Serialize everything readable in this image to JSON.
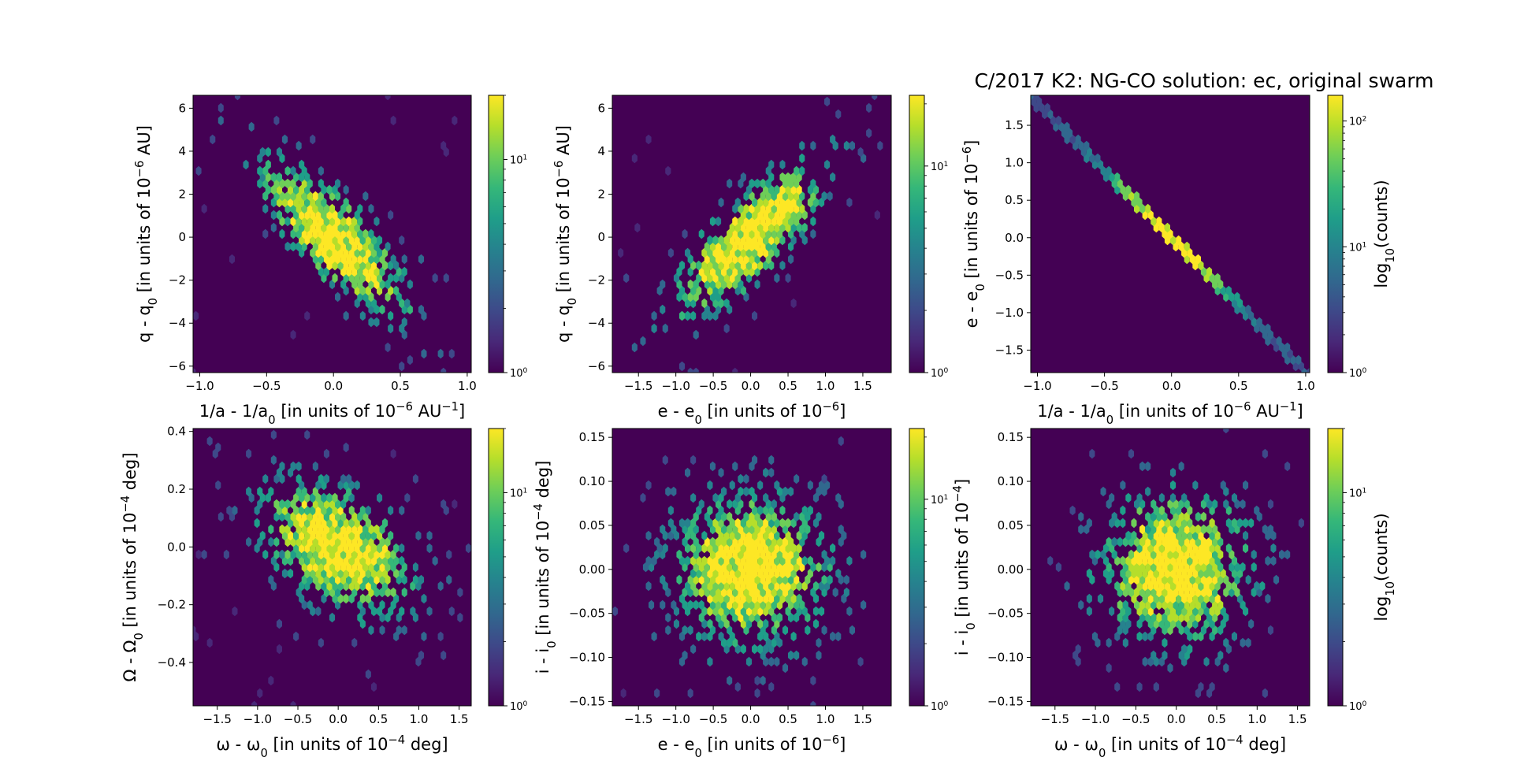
{
  "figure": {
    "title": "C/2017 K2:  NG-CO solution: ec, original swarm"
  },
  "colormap": [
    "#440154",
    "#482878",
    "#3e4989",
    "#31688e",
    "#26828e",
    "#1f9e89",
    "#35b779",
    "#6ece58",
    "#b5de2b",
    "#fde725"
  ],
  "chart_data": [
    {
      "type": "heatmap",
      "subtype": "hexbin",
      "xlabel": "1/a - 1/a_0 [in units of 10^-6 AU^-1]",
      "ylabel": "q - q_0 [in units of 10^-6 AU]",
      "xlim": [
        -1.05,
        1.03
      ],
      "ylim": [
        -6.3,
        6.6
      ],
      "xticks": [
        -1.0,
        -0.5,
        0.0,
        0.5,
        1.0
      ],
      "xtick_labels": [
        "−1.0",
        "−0.5",
        "0.0",
        "0.5",
        "1.0"
      ],
      "yticks": [
        -6,
        -4,
        -2,
        0,
        2,
        4,
        6
      ],
      "ytick_labels": [
        "−6",
        "−4",
        "−2",
        "0",
        "2",
        "4",
        "6"
      ],
      "distribution": {
        "mean": [
          0.0,
          0.0
        ],
        "sigma": [
          0.32,
          2.05
        ],
        "rho": -0.8
      },
      "colorbar": {
        "scale": "log",
        "range": [
          1,
          20
        ],
        "tick_labels": [
          "10^0",
          "10^1"
        ],
        "label": ""
      }
    },
    {
      "type": "heatmap",
      "subtype": "hexbin",
      "xlabel": "e - e_0 [in units of 10^-6]",
      "ylabel": "q - q_0 [in units of 10^-6 AU]",
      "xlim": [
        -1.85,
        1.88
      ],
      "ylim": [
        -6.3,
        6.6
      ],
      "xticks": [
        -1.5,
        -1.0,
        -0.5,
        0.0,
        0.5,
        1.0,
        1.5
      ],
      "xtick_labels": [
        "−1.5",
        "−1.0",
        "−0.5",
        "0.0",
        "0.5",
        "1.0",
        "1.5"
      ],
      "yticks": [
        -6,
        -4,
        -2,
        0,
        2,
        4,
        6
      ],
      "ytick_labels": [
        "−6",
        "−4",
        "−2",
        "0",
        "2",
        "4",
        "6"
      ],
      "distribution": {
        "mean": [
          0.0,
          0.0
        ],
        "sigma": [
          0.58,
          2.05
        ],
        "rho": 0.8
      },
      "colorbar": {
        "scale": "log",
        "range": [
          1,
          22
        ],
        "tick_labels": [
          "10^0",
          "10^1"
        ],
        "label": ""
      }
    },
    {
      "type": "heatmap",
      "subtype": "hexbin",
      "xlabel": "1/a - 1/a_0 [in units of 10^-6 AU^-1]",
      "ylabel": "e - e_0 [in units of 10^-6]",
      "xlim": [
        -1.05,
        1.03
      ],
      "ylim": [
        -1.8,
        1.9
      ],
      "xticks": [
        -1.0,
        -0.5,
        0.0,
        0.5,
        1.0
      ],
      "xtick_labels": [
        "−1.0",
        "−0.5",
        "0.0",
        "0.5",
        "1.0"
      ],
      "yticks": [
        -1.5,
        -1.0,
        -0.5,
        0.0,
        0.5,
        1.0,
        1.5
      ],
      "ytick_labels": [
        "−1.5",
        "−1.0",
        "−0.5",
        "0.0",
        "0.5",
        "1.0",
        "1.5"
      ],
      "distribution": {
        "linear": true,
        "slope": -1.8,
        "intercept": 0.0,
        "sigma_x": 0.32
      },
      "colorbar": {
        "scale": "log",
        "range": [
          1,
          160
        ],
        "tick_labels": [
          "10^0",
          "10^1",
          "10^2"
        ],
        "label": "log_10(counts)"
      }
    },
    {
      "type": "heatmap",
      "subtype": "hexbin",
      "xlabel": "ω - ω_0 [in units of 10^-4 deg]",
      "ylabel": "Ω - Ω_0 [in units of 10^-4 deg]",
      "xlim": [
        -1.8,
        1.65
      ],
      "ylim": [
        -0.55,
        0.41
      ],
      "xticks": [
        -1.5,
        -1.0,
        -0.5,
        0.0,
        0.5,
        1.0,
        1.5
      ],
      "xtick_labels": [
        "−1.5",
        "−1.0",
        "−0.5",
        "0.0",
        "0.5",
        "1.0",
        "1.5"
      ],
      "yticks": [
        -0.4,
        -0.2,
        0.0,
        0.2
      ],
      "ytick_labels": [
        "−0.4",
        "−0.2",
        "0.0",
        "0.2"
      ],
      "extra_ytick_label": {
        "value": 0.4,
        "label": "0.4"
      },
      "distribution": {
        "mean": [
          0.0,
          0.0
        ],
        "sigma": [
          0.52,
          0.13
        ],
        "rho": -0.45
      },
      "colorbar": {
        "scale": "log",
        "range": [
          1,
          20
        ],
        "tick_labels": [
          "10^0",
          "10^1"
        ],
        "label": ""
      }
    },
    {
      "type": "heatmap",
      "subtype": "hexbin",
      "xlabel": "e - e_0 [in units of 10^-6]",
      "ylabel": "i - i_0 [in units of 10^-4 deg]",
      "xlim": [
        -1.85,
        1.88
      ],
      "ylim": [
        -0.155,
        0.16
      ],
      "xticks": [
        -1.5,
        -1.0,
        -0.5,
        0.0,
        0.5,
        1.0,
        1.5
      ],
      "xtick_labels": [
        "−1.5",
        "−1.0",
        "−0.5",
        "0.0",
        "0.5",
        "1.0",
        "1.5"
      ],
      "yticks": [
        -0.15,
        -0.1,
        -0.05,
        0.0,
        0.05,
        0.1,
        0.15
      ],
      "ytick_labels": [
        "−0.15",
        "−0.10",
        "−0.05",
        "0.00",
        "0.05",
        "0.10",
        "0.15"
      ],
      "distribution": {
        "mean": [
          0.0,
          0.0
        ],
        "sigma": [
          0.58,
          0.048
        ],
        "rho": 0.0
      },
      "colorbar": {
        "scale": "log",
        "range": [
          1,
          22
        ],
        "tick_labels": [
          "10^0",
          "10^1"
        ],
        "label": ""
      }
    },
    {
      "type": "heatmap",
      "subtype": "hexbin",
      "xlabel": "ω - ω_0 [in units of 10^-4 deg]",
      "ylabel": "i - i_0 [in units of 10^-4]",
      "xlim": [
        -1.8,
        1.65
      ],
      "ylim": [
        -0.155,
        0.16
      ],
      "xticks": [
        -1.5,
        -1.0,
        -0.5,
        0.0,
        0.5,
        1.0,
        1.5
      ],
      "xtick_labels": [
        "−1.5",
        "−1.0",
        "−0.5",
        "0.0",
        "0.5",
        "1.0",
        "1.5"
      ],
      "yticks": [
        -0.15,
        -0.1,
        -0.05,
        0.0,
        0.05,
        0.1,
        0.15
      ],
      "ytick_labels": [
        "−0.15",
        "−0.10",
        "−0.05",
        "0.00",
        "0.05",
        "0.10",
        "0.15"
      ],
      "distribution": {
        "mean": [
          0.0,
          0.0
        ],
        "sigma": [
          0.52,
          0.048
        ],
        "rho": 0.0
      },
      "colorbar": {
        "scale": "log",
        "range": [
          1,
          20
        ],
        "tick_labels": [
          "10^0",
          "10^1"
        ],
        "label": "log_10(counts)"
      }
    }
  ]
}
